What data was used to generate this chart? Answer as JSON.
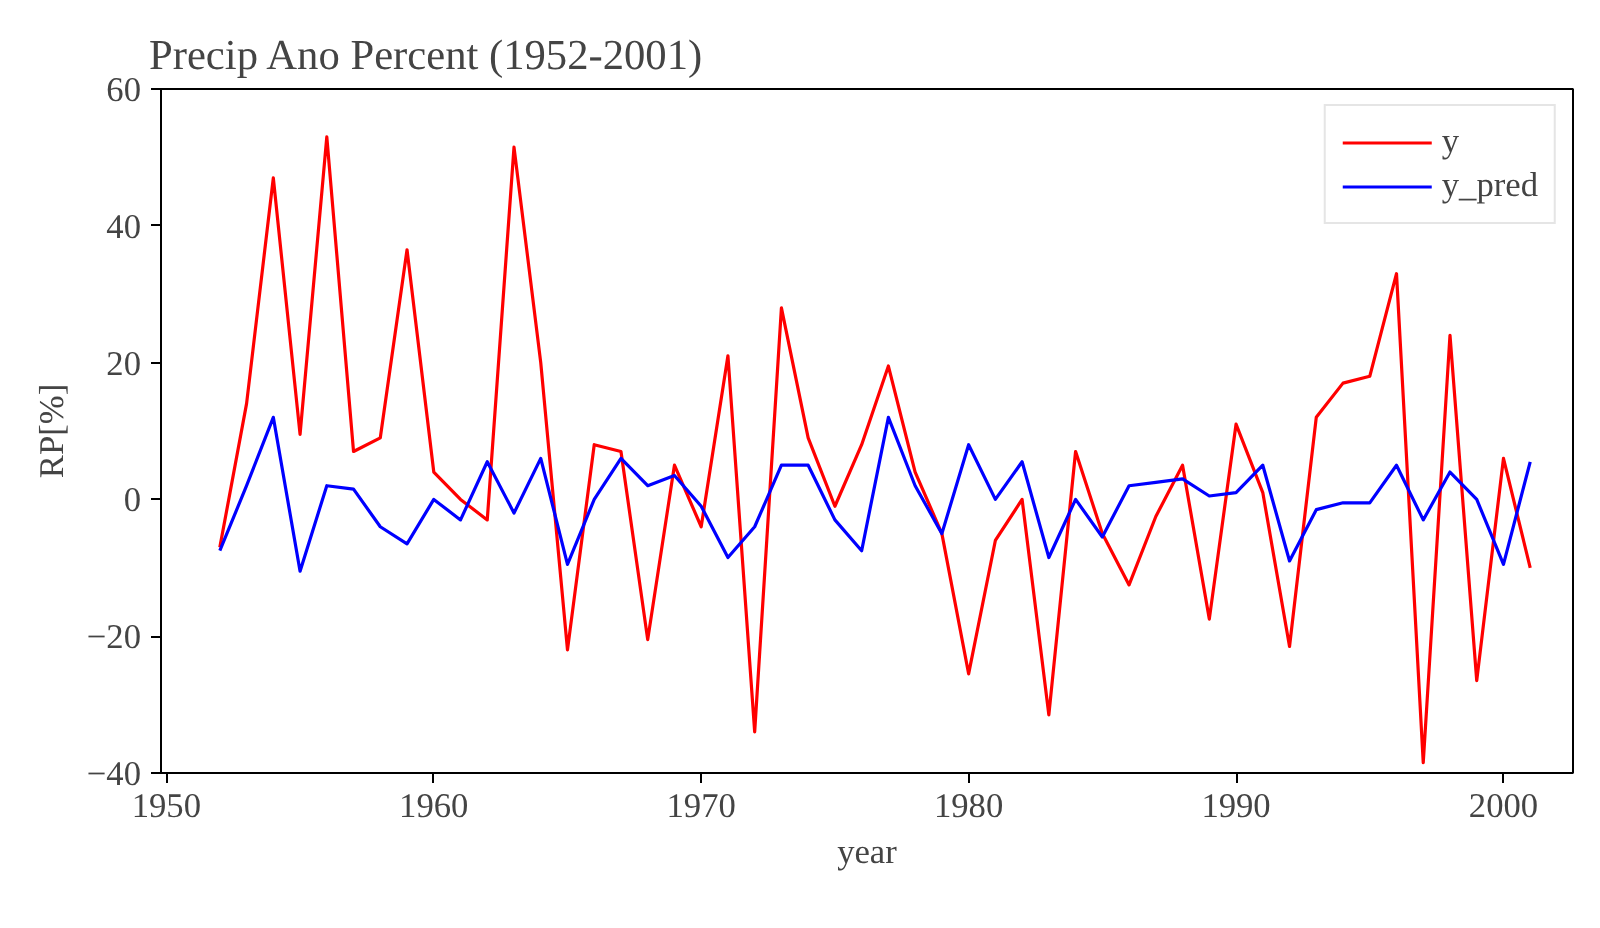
{
  "chart_data": {
    "type": "line",
    "title": "Precip Ano Percent (1952-2001)",
    "xlabel": "year",
    "ylabel": "RP[%]",
    "x": [
      1952,
      1953,
      1954,
      1955,
      1956,
      1957,
      1958,
      1959,
      1960,
      1961,
      1962,
      1963,
      1964,
      1965,
      1966,
      1967,
      1968,
      1969,
      1970,
      1971,
      1972,
      1973,
      1974,
      1975,
      1976,
      1977,
      1978,
      1979,
      1980,
      1981,
      1982,
      1983,
      1984,
      1985,
      1986,
      1987,
      1988,
      1989,
      1990,
      1991,
      1992,
      1993,
      1994,
      1995,
      1996,
      1997,
      1998,
      1999,
      2000,
      2001
    ],
    "series": [
      {
        "name": "y",
        "color": "#ff0000",
        "values": [
          -7,
          14,
          47,
          9.5,
          53,
          7,
          9,
          36.5,
          4,
          0,
          -3,
          51.5,
          20,
          -22,
          8,
          7,
          -20.5,
          5,
          -4,
          21,
          -34,
          28,
          9,
          -1,
          8,
          19.5,
          4,
          -5,
          -25.5,
          -6,
          0,
          -31.5,
          7,
          -5,
          -12.5,
          -2.5,
          5,
          -17.5,
          11,
          1,
          -21.5,
          12,
          17,
          18,
          33,
          -38.5,
          24,
          -26.5,
          6,
          -10
        ]
      },
      {
        "name": "y_pred",
        "color": "#0000ff",
        "values": [
          -7.5,
          2,
          12,
          -10.5,
          2,
          1.5,
          -4,
          -6.5,
          0,
          -3,
          5.5,
          -2,
          6,
          -9.5,
          0,
          6,
          2,
          3.5,
          -1,
          -8.5,
          -4,
          5,
          5,
          -3,
          -7.5,
          12,
          2,
          -5,
          8,
          0,
          5.5,
          -8.5,
          0,
          -5.5,
          2,
          2.5,
          3,
          0.5,
          1,
          5,
          -9,
          -1.5,
          -0.5,
          -0.5,
          5,
          -3,
          4,
          0,
          -9.5,
          5.5
        ]
      }
    ],
    "xlim": [
      1949.8,
      2002.6
    ],
    "xticks": [
      1950,
      1960,
      1970,
      1980,
      1990,
      2000
    ],
    "ylim": [
      -40,
      60
    ],
    "yticks": [
      -40,
      -20,
      0,
      20,
      40,
      60
    ],
    "grid": false,
    "legend": "top right",
    "line_style": "solid",
    "marker": "none"
  }
}
